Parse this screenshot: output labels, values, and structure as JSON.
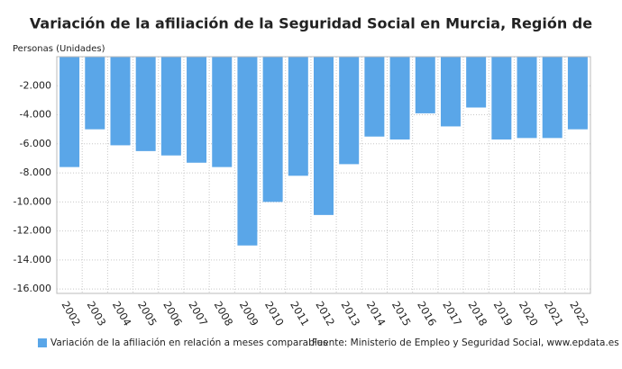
{
  "chart_data": {
    "type": "bar",
    "title": "Variación de la afiliación de la Seguridad Social en Murcia, Región de",
    "y_label": "Personas (Unidades)",
    "categories": [
      "2002",
      "2003",
      "2004",
      "2005",
      "2006",
      "2007",
      "2008",
      "2009",
      "2010",
      "2011",
      "2012",
      "2013",
      "2014",
      "2015",
      "2016",
      "2017",
      "2018",
      "2019",
      "2020",
      "2021",
      "2022"
    ],
    "series": [
      {
        "name": "Variación de la afiliación en relación a meses comparables",
        "color": "#5aa6e8",
        "values": [
          -7600,
          -5000,
          -6100,
          -6500,
          -6800,
          -7300,
          -7600,
          -13000,
          -10000,
          -8200,
          -10900,
          -7400,
          -5500,
          -5700,
          -3900,
          -4800,
          -3500,
          -5700,
          -5600,
          -5600,
          -5000
        ]
      }
    ],
    "ylim": [
      -16300,
      0
    ],
    "yticks": [
      {
        "value": -2000,
        "label": "-2.000"
      },
      {
        "value": -4000,
        "label": "-4.000"
      },
      {
        "value": -6000,
        "label": "-6.000"
      },
      {
        "value": -8000,
        "label": "-8.000"
      },
      {
        "value": -10000,
        "label": "-10.000"
      },
      {
        "value": -12000,
        "label": "-12.000"
      },
      {
        "value": -14000,
        "label": "-14.000"
      },
      {
        "value": -16000,
        "label": "-16.000"
      }
    ],
    "grid": true,
    "source": "Fuente: Ministerio de Empleo y Seguridad Social, www.epdata.es"
  }
}
